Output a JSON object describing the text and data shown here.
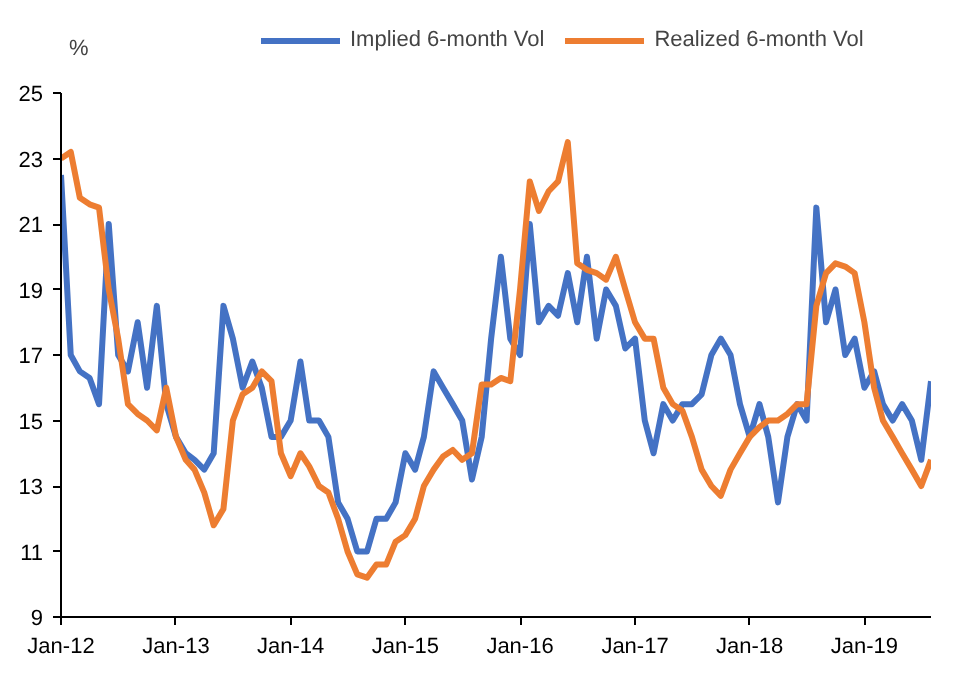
{
  "chart_data": {
    "type": "line",
    "ylabel": "%",
    "legend": "top",
    "grid": false,
    "line_style": "solid",
    "marker": "none",
    "xlim": [
      "2012-01",
      "2019-08"
    ],
    "ylim": [
      9,
      25
    ],
    "yticks": [
      9,
      11,
      13,
      15,
      17,
      19,
      21,
      23,
      25
    ],
    "xticks": [
      {
        "value": "2012-01",
        "label": "Jan-12"
      },
      {
        "value": "2013-01",
        "label": "Jan-13"
      },
      {
        "value": "2014-01",
        "label": "Jan-14"
      },
      {
        "value": "2015-01",
        "label": "Jan-15"
      },
      {
        "value": "2016-01",
        "label": "Jan-16"
      },
      {
        "value": "2017-01",
        "label": "Jan-17"
      },
      {
        "value": "2018-01",
        "label": "Jan-18"
      },
      {
        "value": "2019-01",
        "label": "Jan-19"
      }
    ],
    "x": [
      "2012-01",
      "2012-02",
      "2012-03",
      "2012-04",
      "2012-05",
      "2012-06",
      "2012-07",
      "2012-08",
      "2012-09",
      "2012-10",
      "2012-11",
      "2012-12",
      "2013-01",
      "2013-02",
      "2013-03",
      "2013-04",
      "2013-05",
      "2013-06",
      "2013-07",
      "2013-08",
      "2013-09",
      "2013-10",
      "2013-11",
      "2013-12",
      "2014-01",
      "2014-02",
      "2014-03",
      "2014-04",
      "2014-05",
      "2014-06",
      "2014-07",
      "2014-08",
      "2014-09",
      "2014-10",
      "2014-11",
      "2014-12",
      "2015-01",
      "2015-02",
      "2015-03",
      "2015-04",
      "2015-05",
      "2015-06",
      "2015-07",
      "2015-08",
      "2015-09",
      "2015-10",
      "2015-11",
      "2015-12",
      "2016-01",
      "2016-02",
      "2016-03",
      "2016-04",
      "2016-05",
      "2016-06",
      "2016-07",
      "2016-08",
      "2016-09",
      "2016-10",
      "2016-11",
      "2016-12",
      "2017-01",
      "2017-02",
      "2017-03",
      "2017-04",
      "2017-05",
      "2017-06",
      "2017-07",
      "2017-08",
      "2017-09",
      "2017-10",
      "2017-11",
      "2017-12",
      "2018-01",
      "2018-02",
      "2018-03",
      "2018-04",
      "2018-05",
      "2018-06",
      "2018-07",
      "2018-08",
      "2018-09",
      "2018-10",
      "2018-11",
      "2018-12",
      "2019-01",
      "2019-02",
      "2019-03",
      "2019-04",
      "2019-05",
      "2019-06",
      "2019-07",
      "2019-08"
    ],
    "series": [
      {
        "name": "Implied 6-month Vol",
        "color": "#4472c4",
        "values": [
          22.5,
          17,
          16.5,
          16.3,
          15.5,
          21,
          17,
          16.5,
          18,
          16,
          18.5,
          15.5,
          14.5,
          14,
          13.8,
          13.5,
          14,
          18.5,
          17.5,
          16,
          16.8,
          16,
          14.5,
          14.5,
          15,
          16.8,
          15,
          15,
          14.5,
          12.5,
          12,
          11,
          11,
          12,
          12,
          12.5,
          14,
          13.5,
          14.5,
          16.5,
          16,
          15.5,
          15,
          13.2,
          14.5,
          17.5,
          20,
          17.5,
          17,
          21,
          18,
          18.5,
          18.2,
          19.5,
          18,
          20,
          17.5,
          19,
          18.5,
          17.2,
          17.5,
          15,
          14,
          15.5,
          15,
          15.5,
          15.5,
          15.8,
          17,
          17.5,
          17,
          15.5,
          14.5,
          15.5,
          14.5,
          12.5,
          14.5,
          15.5,
          15,
          21.5,
          18,
          19,
          17,
          17.5,
          16,
          16.5,
          15.5,
          15,
          15.5,
          15,
          13.8,
          16.2
        ]
      },
      {
        "name": "Realized 6-month Vol",
        "color": "#ed7d31",
        "values": [
          23,
          23.2,
          21.8,
          21.6,
          21.5,
          19,
          17.5,
          15.5,
          15.2,
          15,
          14.7,
          16,
          14.5,
          13.8,
          13.5,
          12.8,
          11.8,
          12.3,
          15,
          15.8,
          16,
          16.5,
          16.2,
          14,
          13.3,
          14,
          13.6,
          13,
          12.8,
          12,
          11,
          10.3,
          10.2,
          10.6,
          10.6,
          11.3,
          11.5,
          12,
          13,
          13.5,
          13.9,
          14.1,
          13.8,
          14,
          16.1,
          16.1,
          16.3,
          16.2,
          19,
          22.3,
          21.4,
          22,
          22.3,
          23.5,
          19.8,
          19.6,
          19.5,
          19.3,
          20,
          19,
          18,
          17.5,
          17.5,
          16,
          15.5,
          15.3,
          14.5,
          13.5,
          13,
          12.7,
          13.5,
          14,
          14.5,
          14.8,
          15,
          15,
          15.2,
          15.5,
          15.5,
          18.5,
          19.5,
          19.8,
          19.7,
          19.5,
          18,
          16,
          15,
          14.5,
          14,
          13.5,
          13,
          13.8
        ]
      }
    ]
  }
}
